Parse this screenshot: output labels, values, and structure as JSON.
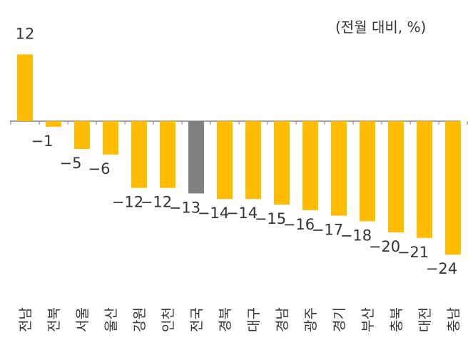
{
  "chart_data": {
    "type": "bar",
    "unit_label": "(전월 대비, %)",
    "categories": [
      "전남",
      "전북",
      "서울",
      "울산",
      "강원",
      "인천",
      "전국",
      "경북",
      "대구",
      "경남",
      "광주",
      "경기",
      "부산",
      "충북",
      "대전",
      "충남"
    ],
    "values": [
      12,
      -1,
      -5,
      -6,
      -12,
      -12,
      -13,
      -14,
      -14,
      -15,
      -16,
      -17,
      -18,
      -20,
      -21,
      -24
    ],
    "highlight_category": "전국",
    "colors": {
      "bar": "#FFBC00",
      "highlight": "#808080",
      "axis": "#808080",
      "text": "#333333"
    },
    "grid": false,
    "legend": "none"
  }
}
